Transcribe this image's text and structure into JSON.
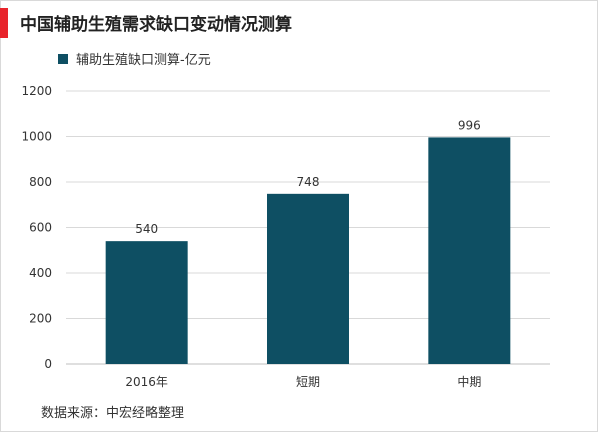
{
  "title": "中国辅助生殖需求缺口变动情况测算",
  "source": "数据来源：中宏经略整理",
  "colors": {
    "bar": "#0e4f63",
    "accent": "#e8242b",
    "grid": "#d9d9d9"
  },
  "chart_data": {
    "type": "bar",
    "categories": [
      "2016年",
      "短期",
      "中期"
    ],
    "series": [
      {
        "name": "辅助生殖缺口测算-亿元",
        "values": [
          540,
          748,
          996
        ]
      }
    ],
    "ylim": [
      0,
      1200
    ],
    "yticks": [
      0,
      200,
      400,
      600,
      800,
      1000,
      1200
    ],
    "grid": true,
    "legend_position": "top-left",
    "data_labels": true
  }
}
